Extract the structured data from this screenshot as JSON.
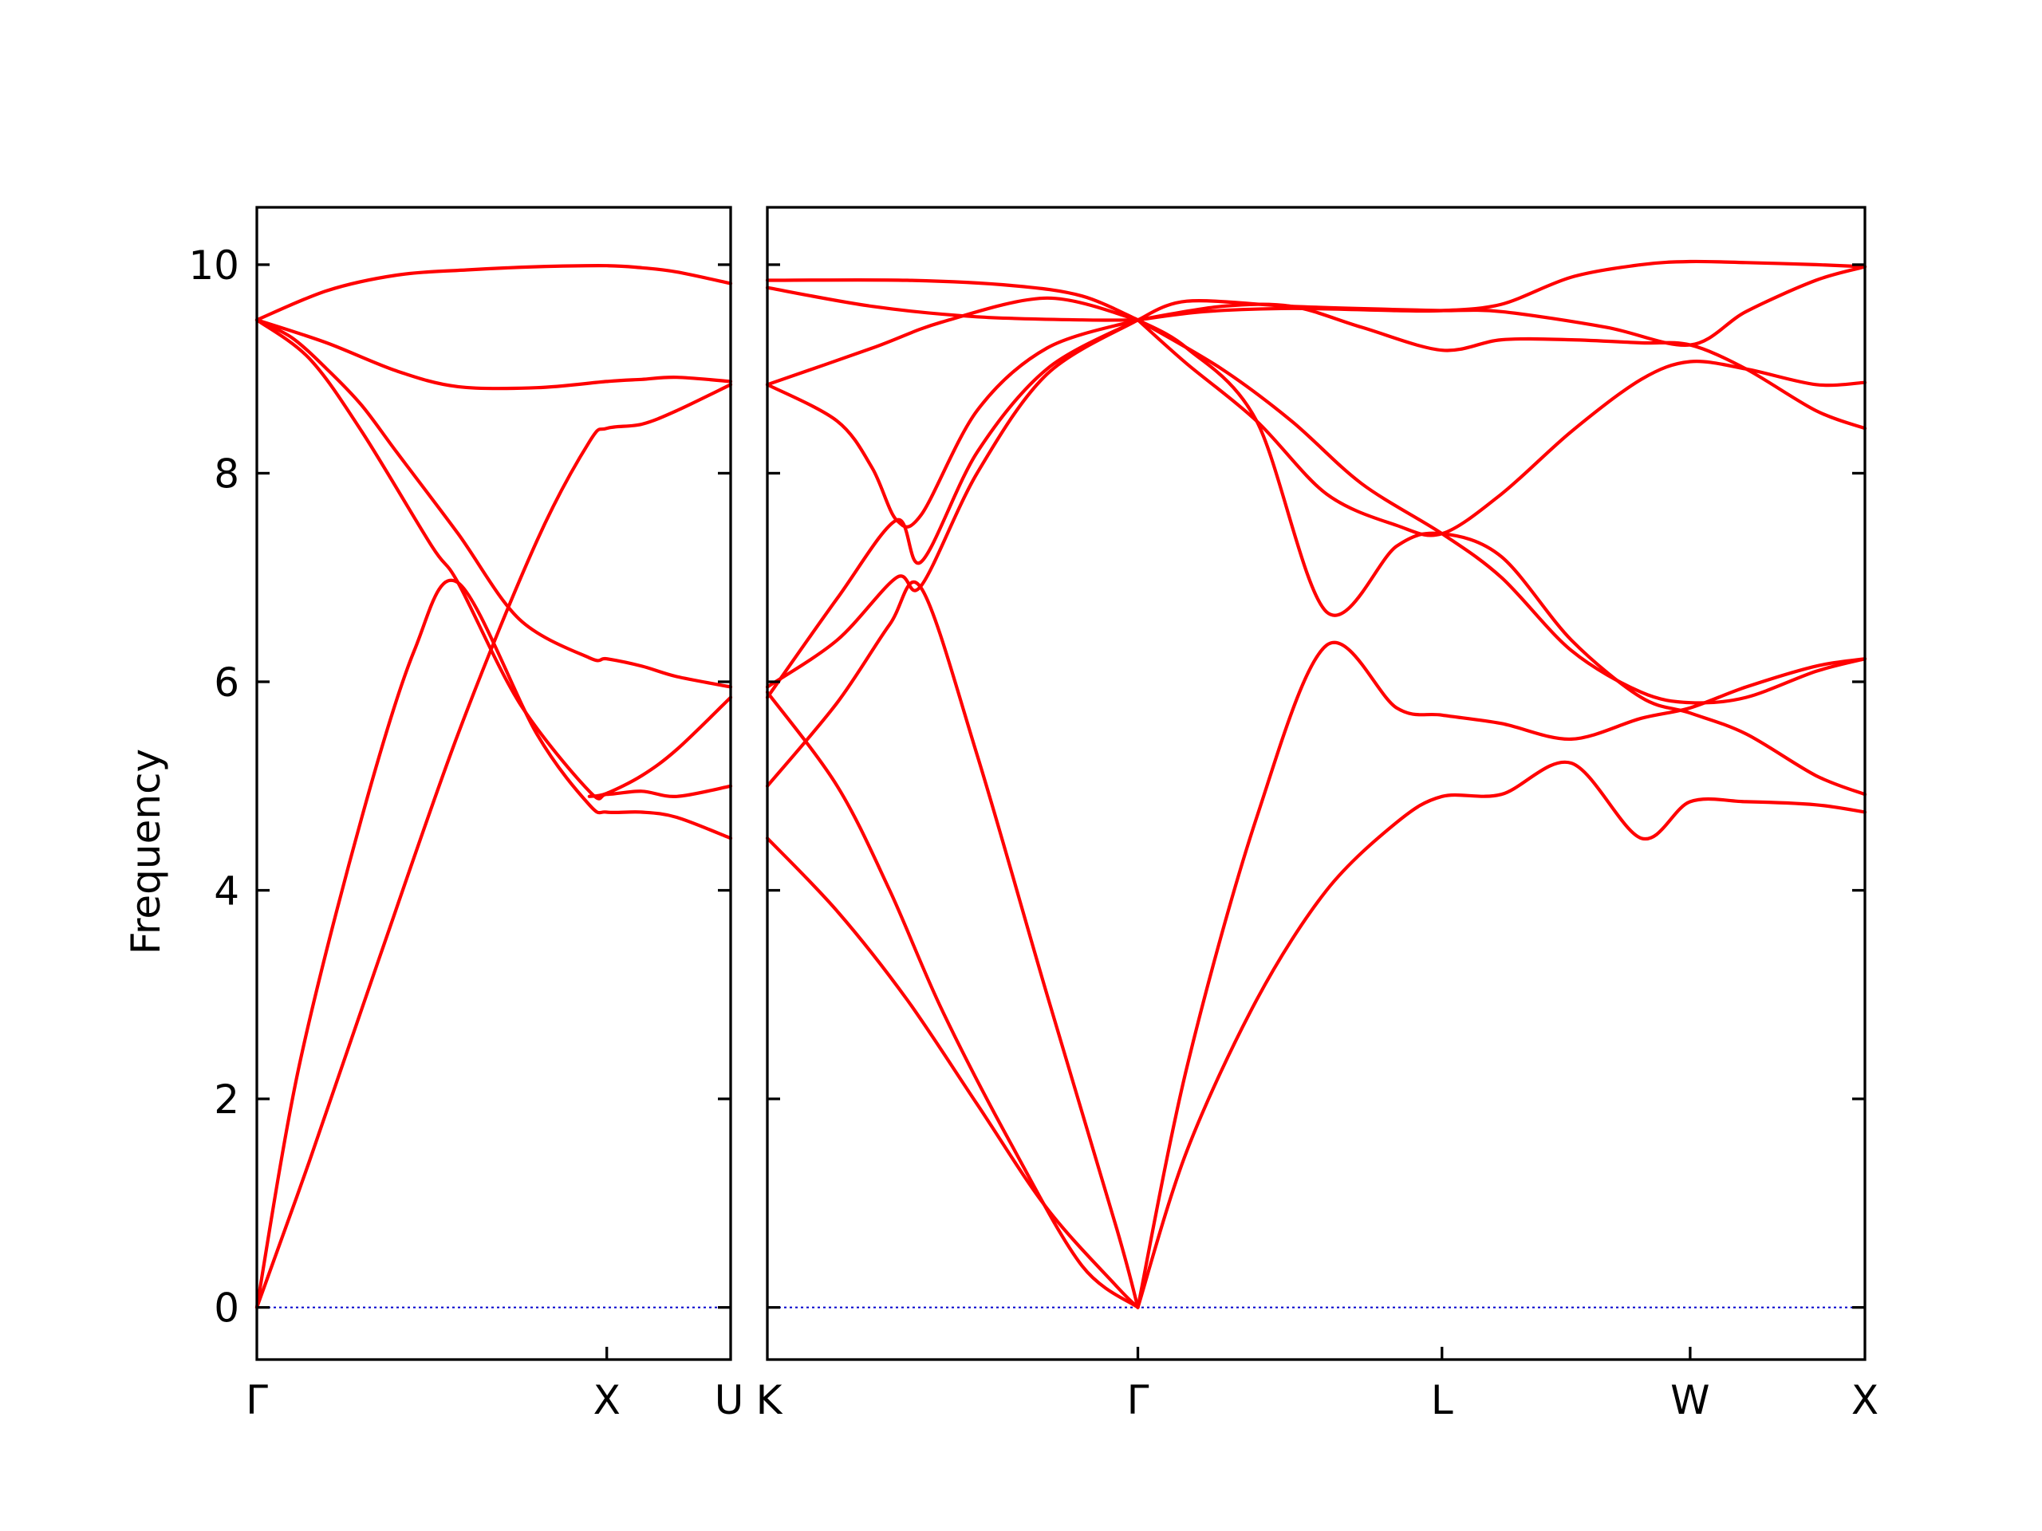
{
  "chart_data": {
    "type": "line",
    "ylabel": "Frequency",
    "ylim": [
      -0.5,
      10.55
    ],
    "yticks": [
      0,
      2,
      4,
      6,
      8,
      10
    ],
    "grid": false,
    "colors": {
      "bands": "#ff0000",
      "zero_line": "#0000cc",
      "axes": "#000000"
    },
    "panels": [
      {
        "xticks": [
          {
            "label": "Γ",
            "x": 0.0
          },
          {
            "label": "X",
            "x": 1.0
          },
          {
            "label": "U",
            "x": 1.354
          }
        ],
        "xlim": [
          0.0,
          1.354
        ],
        "series": [
          {
            "x": [
              0,
              0.15,
              0.35,
              0.575,
              0.8,
              0.95,
              1.0,
              1.1,
              1.2,
              1.354
            ],
            "y": [
              0,
              1.4,
              3.35,
              5.5,
              7.35,
              8.3,
              8.43,
              8.47,
              8.6,
              8.85
            ]
          },
          {
            "x": [
              0,
              0.12,
              0.3,
              0.45,
              0.575,
              0.8,
              0.95,
              1.0,
              1.1,
              1.2,
              1.354
            ],
            "y": [
              0,
              2.3,
              4.7,
              6.3,
              6.95,
              5.5,
              4.82,
              4.75,
              4.75,
              4.7,
              4.5
            ]
          },
          {
            "x": [
              0,
              0.15,
              0.3,
              0.5,
              0.575,
              0.75,
              0.95,
              1.0,
              1.1,
              1.2,
              1.354
            ],
            "y": [
              9.47,
              9.1,
              8.4,
              7.3,
              6.95,
              5.8,
              4.95,
              4.92,
              4.95,
              4.9,
              5.0
            ]
          },
          {
            "x": [
              0,
              0.1,
              0.2,
              0.3,
              0.4,
              0.575,
              0.75,
              0.95,
              1.0,
              1.1,
              1.2,
              1.354
            ],
            "y": [
              9.47,
              9.3,
              9.0,
              8.65,
              8.2,
              7.42,
              6.6,
              6.23,
              6.22,
              6.15,
              6.05,
              5.95
            ]
          },
          {
            "x": [
              0,
              0.2,
              0.4,
              0.575,
              0.8,
              1.0,
              1.1,
              1.2,
              1.354
            ],
            "y": [
              9.47,
              9.25,
              8.98,
              8.83,
              8.82,
              8.88,
              8.9,
              8.92,
              8.88
            ]
          },
          {
            "x": [
              0,
              0.2,
              0.4,
              0.6,
              0.8,
              1.0,
              1.1,
              1.2,
              1.354
            ],
            "y": [
              9.47,
              9.75,
              9.9,
              9.95,
              9.98,
              9.99,
              9.97,
              9.93,
              9.82
            ]
          },
          {
            "x": [
              0.95,
              1.0,
              1.1,
              1.2,
              1.354
            ],
            "y": [
              4.9,
              4.93,
              5.1,
              5.35,
              5.85
            ]
          }
        ]
      },
      {
        "xticks": [
          {
            "label": "K",
            "x": 0.0
          },
          {
            "label": "Γ",
            "x": 1.06
          },
          {
            "label": "L",
            "x": 1.93
          },
          {
            "label": "W",
            "x": 2.64
          },
          {
            "label": "X",
            "x": 3.14
          }
        ],
        "xlim": [
          0.0,
          3.14
        ],
        "series": [
          {
            "x": [
              0,
              0.2,
              0.4,
              0.6,
              0.8,
              1.0,
              1.06
            ],
            "y": [
              4.5,
              3.8,
              2.95,
              1.95,
              0.95,
              0.2,
              0
            ]
          },
          {
            "x": [
              0,
              0.2,
              0.35,
              0.5,
              0.7,
              0.9,
              1.06
            ],
            "y": [
              5.9,
              5.0,
              4.0,
              2.85,
              1.55,
              0.4,
              0
            ]
          },
          {
            "x": [
              0,
              0.2,
              0.35,
              0.44,
              0.6,
              0.8,
              1.0,
              1.06
            ],
            "y": [
              5.0,
              5.8,
              6.55,
              6.9,
              5.3,
              3.0,
              0.75,
              0
            ]
          },
          {
            "x": [
              0,
              0.2,
              0.37,
              0.44,
              0.6,
              0.8,
              1.06
            ],
            "y": [
              5.95,
              6.4,
              7.0,
              6.92,
              8.0,
              8.95,
              9.47
            ]
          },
          {
            "x": [
              0,
              0.2,
              0.37,
              0.44,
              0.6,
              0.8,
              1.06
            ],
            "y": [
              5.85,
              6.8,
              7.55,
              7.15,
              8.2,
              9.0,
              9.47
            ]
          },
          {
            "x": [
              0,
              0.2,
              0.3,
              0.37,
              0.44,
              0.6,
              0.8,
              1.06
            ],
            "y": [
              8.85,
              8.5,
              8.05,
              7.55,
              7.6,
              8.6,
              9.2,
              9.47
            ]
          },
          {
            "x": [
              0,
              0.3,
              0.5,
              0.8,
              1.06
            ],
            "y": [
              8.85,
              9.2,
              9.45,
              9.68,
              9.47
            ]
          },
          {
            "x": [
              0,
              0.3,
              0.6,
              0.9,
              1.06
            ],
            "y": [
              9.78,
              9.6,
              9.5,
              9.47,
              9.47
            ]
          },
          {
            "x": [
              0,
              0.4,
              0.7,
              0.9,
              1.06
            ],
            "y": [
              9.85,
              9.85,
              9.8,
              9.7,
              9.47
            ]
          },
          {
            "x": [
              1.06,
              1.2,
              1.4,
              1.6,
              1.8,
              1.93,
              2.1,
              2.3,
              2.5,
              2.64,
              2.8,
              3.0,
              3.14
            ],
            "y": [
              0,
              1.5,
              2.95,
              4.0,
              4.65,
              4.9,
              4.92,
              5.22,
              4.5,
              4.85,
              4.85,
              4.82,
              4.75
            ]
          },
          {
            "x": [
              1.06,
              1.2,
              1.4,
              1.6,
              1.8,
              1.93,
              2.1,
              2.3,
              2.5,
              2.64,
              2.8,
              3.0,
              3.14
            ],
            "y": [
              0,
              2.3,
              4.7,
              6.35,
              5.75,
              5.68,
              5.6,
              5.45,
              5.65,
              5.75,
              5.95,
              6.15,
              6.22
            ]
          },
          {
            "x": [
              1.06,
              1.2,
              1.4,
              1.6,
              1.8,
              1.93,
              2.1,
              2.3,
              2.5,
              2.64,
              2.8,
              3.0,
              3.14
            ],
            "y": [
              9.47,
              9.2,
              8.5,
              6.67,
              7.3,
              7.42,
              7.2,
              6.4,
              5.85,
              5.7,
              5.5,
              5.1,
              4.92
            ]
          },
          {
            "x": [
              1.06,
              1.3,
              1.5,
              1.7,
              1.93,
              2.1,
              2.3,
              2.5,
              2.64,
              2.8,
              3.0,
              3.14
            ],
            "y": [
              9.47,
              9.0,
              8.5,
              7.9,
              7.42,
              7.0,
              6.3,
              5.9,
              5.8,
              5.85,
              6.1,
              6.22
            ]
          },
          {
            "x": [
              1.06,
              1.2,
              1.4,
              1.6,
              1.8,
              1.93,
              2.1,
              2.3,
              2.5,
              2.64,
              2.8,
              3.0,
              3.14
            ],
            "y": [
              9.47,
              9.05,
              8.5,
              7.8,
              7.5,
              7.42,
              7.8,
              8.4,
              8.9,
              9.07,
              9.0,
              8.85,
              8.87
            ]
          },
          {
            "x": [
              1.06,
              1.3,
              1.5,
              1.7,
              1.93,
              2.1,
              2.3,
              2.5,
              2.64,
              2.8,
              3.0,
              3.14
            ],
            "y": [
              9.47,
              9.6,
              9.6,
              9.4,
              9.18,
              9.28,
              9.28,
              9.25,
              9.23,
              9.0,
              8.6,
              8.43
            ]
          },
          {
            "x": [
              1.06,
              1.2,
              1.5,
              1.8,
              1.93,
              2.1,
              2.4,
              2.64,
              2.8,
              3.0,
              3.14
            ],
            "y": [
              9.47,
              9.65,
              9.6,
              9.57,
              9.56,
              9.55,
              9.4,
              9.23,
              9.55,
              9.85,
              9.98
            ]
          },
          {
            "x": [
              1.06,
              1.25,
              1.5,
              1.8,
              1.93,
              2.1,
              2.3,
              2.5,
              2.64,
              2.8,
              3.0,
              3.14
            ],
            "y": [
              9.47,
              9.55,
              9.58,
              9.56,
              9.56,
              9.62,
              9.88,
              10.0,
              10.03,
              10.02,
              10.0,
              9.98
            ]
          }
        ]
      }
    ]
  }
}
